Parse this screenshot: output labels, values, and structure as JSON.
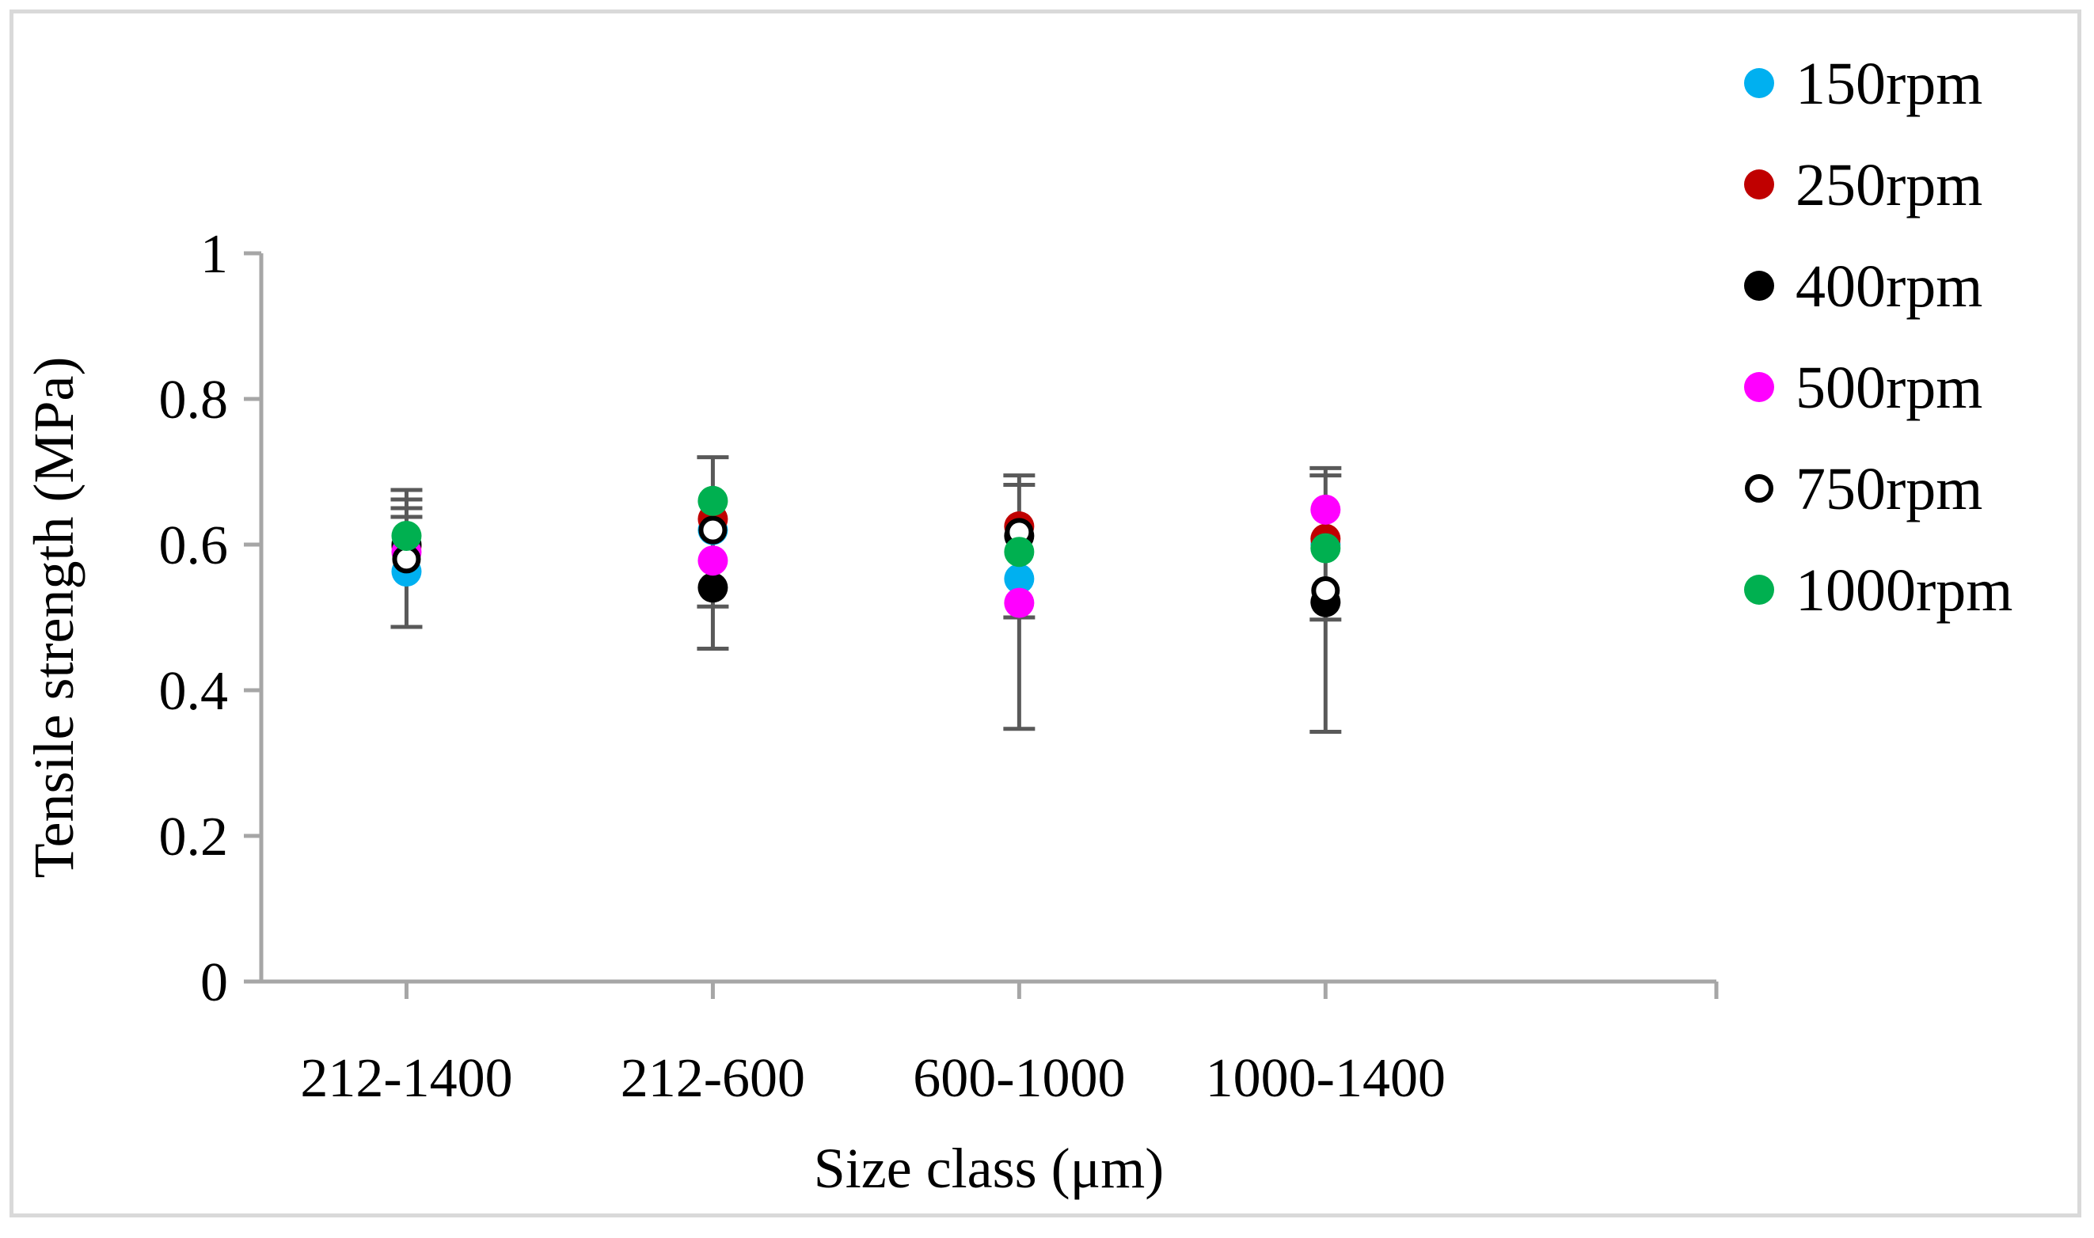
{
  "chart_data": {
    "type": "scatter",
    "title": "",
    "xlabel": "Size class (μm)",
    "ylabel": "Tensile strength (MPa)",
    "ylim": [
      0,
      1
    ],
    "yticks": [
      "0",
      "0.2",
      "0.4",
      "0.6",
      "0.8",
      "1"
    ],
    "categories": [
      "212-1400",
      "212-600",
      "600-1000",
      "1000-1400"
    ],
    "legend_position": "right",
    "series": [
      {
        "name": "150rpm",
        "color": "#00b0f0",
        "hollow": false,
        "values": [
          0.563,
          0.62,
          0.553,
          0.6
        ]
      },
      {
        "name": "250rpm",
        "color": "#c00000",
        "hollow": false,
        "values": [
          0.598,
          0.635,
          0.625,
          0.608
        ]
      },
      {
        "name": "400rpm",
        "color": "#000000",
        "hollow": false,
        "values": [
          0.6,
          0.541,
          0.612,
          0.521
        ]
      },
      {
        "name": "500rpm",
        "color": "#ff00ff",
        "hollow": false,
        "values": [
          0.59,
          0.578,
          0.52,
          0.648
        ]
      },
      {
        "name": "750rpm",
        "color": "#000000",
        "hollow": true,
        "values": [
          0.58,
          0.62,
          0.617,
          0.537
        ]
      },
      {
        "name": "1000rpm",
        "color": "#00b050",
        "hollow": false,
        "values": [
          0.612,
          0.66,
          0.59,
          0.595
        ]
      }
    ],
    "error_bars": [
      {
        "category": "212-1400",
        "low": 0.487,
        "high": 0.675,
        "caps": [
          0.675,
          0.662,
          0.65,
          0.638,
          0.487
        ]
      },
      {
        "category": "212-600",
        "low": 0.457,
        "high": 0.72,
        "caps": [
          0.72,
          0.515,
          0.457
        ]
      },
      {
        "category": "600-1000",
        "low": 0.347,
        "high": 0.695,
        "caps": [
          0.695,
          0.682,
          0.5,
          0.347
        ]
      },
      {
        "category": "1000-1400",
        "low": 0.343,
        "high": 0.705,
        "caps": [
          0.705,
          0.695,
          0.497,
          0.343
        ]
      }
    ]
  }
}
